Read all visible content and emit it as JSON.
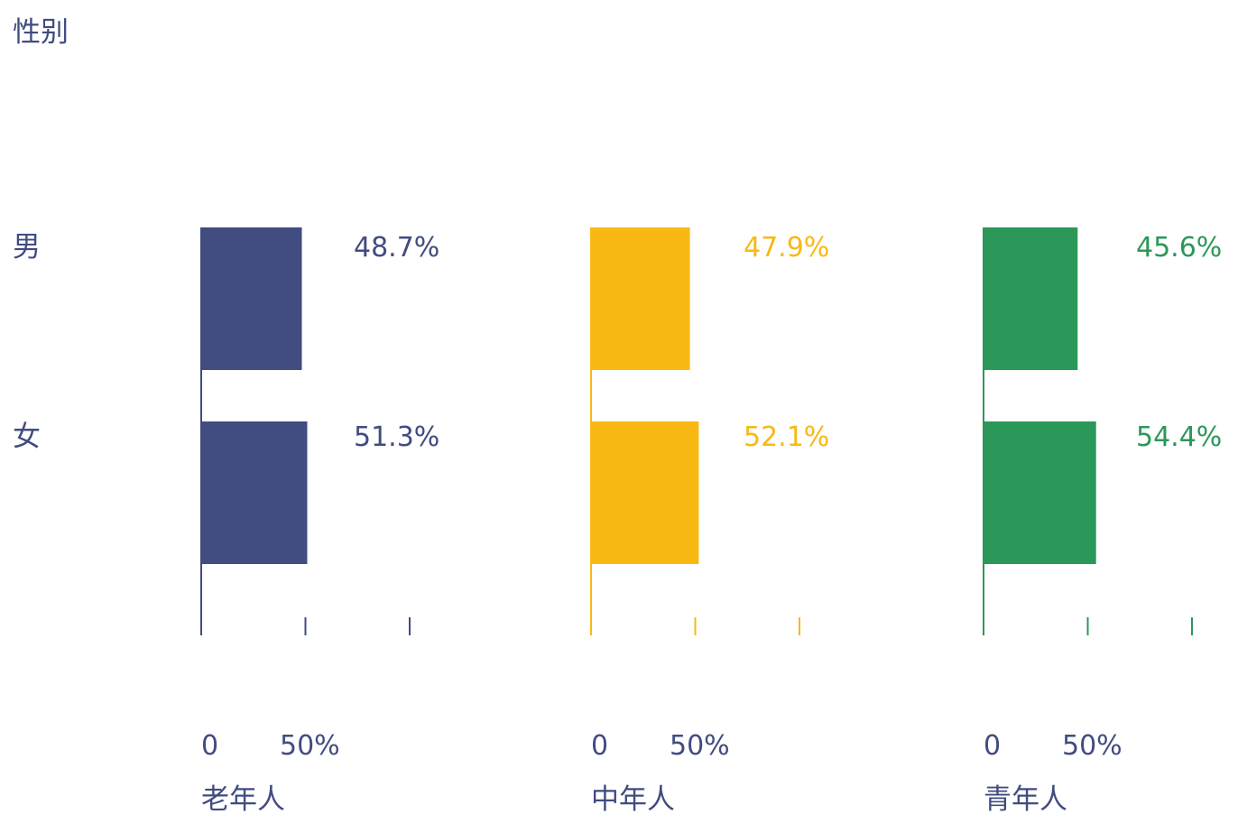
{
  "chart_data": {
    "type": "bar",
    "title": "性别",
    "categories": [
      "男",
      "女"
    ],
    "xlim": [
      0,
      100
    ],
    "tick_labels": [
      "0",
      "50%"
    ],
    "groups": [
      {
        "name": "老年人",
        "color": "#414c80",
        "values": [
          48.7,
          51.3
        ],
        "value_labels": [
          "48.7%",
          "51.3%"
        ]
      },
      {
        "name": "中年人",
        "color": "#f8b914",
        "values": [
          47.9,
          52.1
        ],
        "value_labels": [
          "47.9%",
          "52.1%"
        ]
      },
      {
        "name": "青年人",
        "color": "#2b9859",
        "values": [
          45.6,
          54.4
        ],
        "value_labels": [
          "45.6%",
          "54.4%"
        ]
      }
    ],
    "text_color": "#414c80"
  }
}
